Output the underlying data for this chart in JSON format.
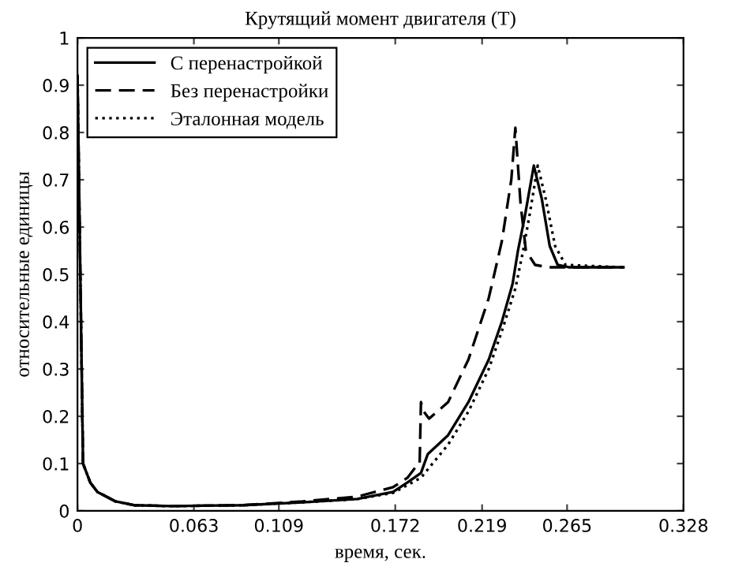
{
  "chart_data": {
    "type": "line",
    "title": "Крутящий момент двигателя (Т)",
    "xlabel": "время, сек.",
    "ylabel": "относительные единицы",
    "xlim": [
      0,
      0.328
    ],
    "ylim": [
      0,
      1
    ],
    "xticks": [
      0,
      0.063,
      0.109,
      0.172,
      0.219,
      0.265,
      0.328
    ],
    "yticks": [
      0,
      0.1,
      0.2,
      0.3,
      0.4,
      0.5,
      0.6,
      0.7,
      0.8,
      0.9,
      1
    ],
    "grid": false,
    "legend": "top left",
    "series": [
      {
        "name": "С перенастройкой",
        "color": "#000000",
        "line_style": "solid",
        "x": [
          0,
          0.003,
          0.0069,
          0.0108,
          0.0206,
          0.0305,
          0.0501,
          0.0896,
          0.1218,
          0.1513,
          0.1708,
          0.1786,
          0.1859,
          0.1896,
          0.2006,
          0.2116,
          0.2226,
          0.2297,
          0.2355,
          0.2384,
          0.242,
          0.247,
          0.2513,
          0.2556,
          0.2599,
          0.2659,
          0.2955
        ],
        "values": [
          0.92,
          0.1,
          0.06,
          0.04,
          0.02,
          0.012,
          0.01,
          0.012,
          0.018,
          0.025,
          0.04,
          0.06,
          0.08,
          0.12,
          0.16,
          0.23,
          0.32,
          0.4,
          0.48,
          0.55,
          0.62,
          0.73,
          0.66,
          0.56,
          0.52,
          0.515,
          0.515
        ]
      },
      {
        "name": "Без перенастройки",
        "color": "#000000",
        "line_style": "dashed",
        "x": [
          0,
          0.003,
          0.0069,
          0.0108,
          0.0206,
          0.0305,
          0.0501,
          0.0896,
          0.1218,
          0.1513,
          0.1708,
          0.1786,
          0.1845,
          0.1852,
          0.1859,
          0.1874,
          0.1903,
          0.2006,
          0.2116,
          0.2226,
          0.2297,
          0.2348,
          0.237,
          0.2398,
          0.2427,
          0.2477,
          0.2549,
          0.2955
        ],
        "values": [
          0.92,
          0.1,
          0.06,
          0.04,
          0.02,
          0.012,
          0.01,
          0.012,
          0.02,
          0.03,
          0.05,
          0.07,
          0.1,
          0.1,
          0.23,
          0.21,
          0.195,
          0.23,
          0.32,
          0.45,
          0.57,
          0.7,
          0.81,
          0.65,
          0.55,
          0.52,
          0.515,
          0.515
        ]
      },
      {
        "name": "Эталонная модель",
        "color": "#000000",
        "line_style": "dotted",
        "x": [
          0,
          0.003,
          0.0069,
          0.0108,
          0.0206,
          0.0305,
          0.0501,
          0.0896,
          0.1218,
          0.1513,
          0.1708,
          0.1859,
          0.2006,
          0.2116,
          0.2226,
          0.2297,
          0.237,
          0.2412,
          0.2449,
          0.2491,
          0.2534,
          0.2585,
          0.2642,
          0.2955
        ],
        "values": [
          0.92,
          0.1,
          0.06,
          0.04,
          0.02,
          0.012,
          0.01,
          0.012,
          0.018,
          0.025,
          0.038,
          0.07,
          0.14,
          0.21,
          0.3,
          0.38,
          0.47,
          0.55,
          0.63,
          0.73,
          0.66,
          0.56,
          0.52,
          0.515
        ]
      }
    ]
  }
}
